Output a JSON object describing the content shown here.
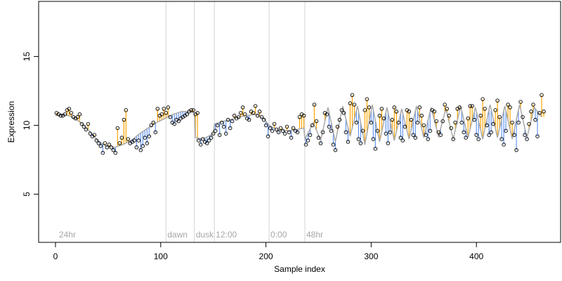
{
  "chart_data": {
    "type": "scatter",
    "xlabel": "Sample index",
    "ylabel": "Expression",
    "xlim": [
      -16,
      480
    ],
    "ylim": [
      1.5,
      19
    ],
    "x_ticks": [
      0,
      100,
      200,
      300,
      400
    ],
    "y_ticks": [
      5,
      10,
      15
    ],
    "grid": false,
    "colors": {
      "points_stroke": "#000000",
      "segment_above": "#ffa500",
      "segment_below": "#6495ed",
      "fitted_line": "#a9a9a9",
      "vertical_lines": "#d3d3d3",
      "annotation_text": "#a6a6a6"
    },
    "vertical_markers": [
      {
        "x": 105,
        "label": "dawn"
      },
      {
        "x": 132,
        "label": "dusk"
      },
      {
        "x": 151,
        "label": "12:00"
      },
      {
        "x": 203,
        "label": "0:00"
      },
      {
        "x": 237,
        "label": "48hr"
      }
    ],
    "annotations": [
      {
        "x": 2,
        "label": "24hr"
      }
    ],
    "fitted_line": [
      [
        0,
        10.7
      ],
      [
        8,
        10.8
      ],
      [
        16,
        10.6
      ],
      [
        24,
        10.2
      ],
      [
        32,
        9.6
      ],
      [
        40,
        8.9
      ],
      [
        48,
        8.5
      ],
      [
        56,
        8.4
      ],
      [
        64,
        8.6
      ],
      [
        72,
        8.9
      ],
      [
        80,
        9.4
      ],
      [
        88,
        9.8
      ],
      [
        96,
        10.2
      ],
      [
        104,
        10.5
      ],
      [
        112,
        10.8
      ],
      [
        120,
        11.0
      ],
      [
        128,
        11.0
      ],
      [
        132,
        10.9
      ],
      [
        133,
        9.1
      ],
      [
        140,
        9.0
      ],
      [
        150,
        9.4
      ],
      [
        151,
        10.1
      ],
      [
        160,
        10.3
      ],
      [
        170,
        10.5
      ],
      [
        180,
        10.7
      ],
      [
        190,
        10.8
      ],
      [
        198,
        10.5
      ],
      [
        203,
        10.0
      ],
      [
        210,
        9.7
      ],
      [
        220,
        9.6
      ],
      [
        230,
        9.7
      ],
      [
        236,
        9.8
      ],
      [
        237,
        9.0
      ],
      [
        245,
        10.2
      ],
      [
        252,
        8.9
      ],
      [
        259,
        11.3
      ],
      [
        266,
        8.8
      ],
      [
        273,
        11.4
      ],
      [
        280,
        9.2
      ],
      [
        287,
        11.4
      ],
      [
        294,
        8.6
      ],
      [
        301,
        11.5
      ],
      [
        308,
        8.8
      ],
      [
        315,
        11.3
      ],
      [
        322,
        8.9
      ],
      [
        329,
        11.2
      ],
      [
        336,
        9.0
      ],
      [
        343,
        11.4
      ],
      [
        350,
        9.1
      ],
      [
        357,
        11.3
      ],
      [
        364,
        9.2
      ],
      [
        371,
        11.2
      ],
      [
        378,
        9.0
      ],
      [
        385,
        11.4
      ],
      [
        392,
        9.1
      ],
      [
        399,
        11.3
      ],
      [
        406,
        9.0
      ],
      [
        413,
        11.5
      ],
      [
        420,
        9.1
      ],
      [
        427,
        11.4
      ],
      [
        434,
        9.0
      ],
      [
        441,
        11.5
      ],
      [
        448,
        9.1
      ],
      [
        455,
        11.3
      ],
      [
        462,
        10.6
      ]
    ],
    "points": [
      [
        1,
        10.9
      ],
      [
        3,
        10.8
      ],
      [
        5,
        10.7
      ],
      [
        7,
        10.7
      ],
      [
        9,
        10.8
      ],
      [
        11,
        11.1
      ],
      [
        13,
        11.2
      ],
      [
        15,
        10.9
      ],
      [
        17,
        10.6
      ],
      [
        19,
        10.5
      ],
      [
        21,
        10.6
      ],
      [
        23,
        10.8
      ],
      [
        25,
        10.1
      ],
      [
        27,
        9.9
      ],
      [
        29,
        9.7
      ],
      [
        31,
        10.1
      ],
      [
        33,
        9.4
      ],
      [
        35,
        9.2
      ],
      [
        37,
        9.3
      ],
      [
        39,
        8.9
      ],
      [
        41,
        8.7
      ],
      [
        43,
        8.5
      ],
      [
        45,
        8.0
      ],
      [
        47,
        8.7
      ],
      [
        49,
        8.4
      ],
      [
        51,
        8.6
      ],
      [
        53,
        8.4
      ],
      [
        55,
        8.2
      ],
      [
        57,
        8.0
      ],
      [
        59,
        9.8
      ],
      [
        61,
        8.7
      ],
      [
        63,
        9.1
      ],
      [
        65,
        10.4
      ],
      [
        67,
        11.1
      ],
      [
        69,
        9.0
      ],
      [
        71,
        8.7
      ],
      [
        73,
        8.8
      ],
      [
        75,
        8.9
      ],
      [
        77,
        8.4
      ],
      [
        79,
        8.9
      ],
      [
        81,
        8.2
      ],
      [
        83,
        8.5
      ],
      [
        85,
        9.1
      ],
      [
        87,
        8.7
      ],
      [
        89,
        9.2
      ],
      [
        91,
        10.0
      ],
      [
        93,
        10.2
      ],
      [
        95,
        9.5
      ],
      [
        97,
        11.2
      ],
      [
        99,
        10.7
      ],
      [
        101,
        10.8
      ],
      [
        103,
        11.2
      ],
      [
        105,
        10.9
      ],
      [
        107,
        11.3
      ],
      [
        109,
        10.6
      ],
      [
        111,
        10.2
      ],
      [
        113,
        10.1
      ],
      [
        115,
        10.4
      ],
      [
        117,
        10.3
      ],
      [
        119,
        10.5
      ],
      [
        121,
        10.6
      ],
      [
        123,
        10.7
      ],
      [
        125,
        10.8
      ],
      [
        127,
        11.0
      ],
      [
        129,
        11.1
      ],
      [
        131,
        11.1
      ],
      [
        133,
        10.8
      ],
      [
        135,
        10.9
      ],
      [
        136,
        8.9
      ],
      [
        138,
        8.6
      ],
      [
        140,
        9.0
      ],
      [
        142,
        8.8
      ],
      [
        144,
        8.7
      ],
      [
        146,
        8.9
      ],
      [
        148,
        9.1
      ],
      [
        150,
        9.4
      ],
      [
        152,
        9.6
      ],
      [
        154,
        10.0
      ],
      [
        156,
        9.3
      ],
      [
        158,
        10.2
      ],
      [
        160,
        9.9
      ],
      [
        162,
        9.4
      ],
      [
        164,
        10.4
      ],
      [
        166,
        9.8
      ],
      [
        168,
        10.3
      ],
      [
        170,
        10.7
      ],
      [
        172,
        10.5
      ],
      [
        174,
        10.6
      ],
      [
        176,
        10.9
      ],
      [
        178,
        11.3
      ],
      [
        180,
        10.8
      ],
      [
        182,
        10.5
      ],
      [
        184,
        10.4
      ],
      [
        186,
        11.0
      ],
      [
        188,
        10.9
      ],
      [
        190,
        11.4
      ],
      [
        192,
        10.7
      ],
      [
        194,
        11.0
      ],
      [
        196,
        10.6
      ],
      [
        198,
        10.4
      ],
      [
        200,
        10.0
      ],
      [
        202,
        9.2
      ],
      [
        204,
        9.8
      ],
      [
        206,
        9.6
      ],
      [
        208,
        10.1
      ],
      [
        210,
        9.7
      ],
      [
        212,
        9.5
      ],
      [
        214,
        9.8
      ],
      [
        216,
        9.6
      ],
      [
        218,
        9.4
      ],
      [
        220,
        9.9
      ],
      [
        222,
        9.5
      ],
      [
        224,
        9.1
      ],
      [
        226,
        9.8
      ],
      [
        228,
        9.6
      ],
      [
        230,
        9.5
      ],
      [
        232,
        10.6
      ],
      [
        234,
        10.8
      ],
      [
        236,
        10.7
      ],
      [
        238,
        8.6
      ],
      [
        240,
        8.9
      ],
      [
        242,
        9.3
      ],
      [
        244,
        10.0
      ],
      [
        246,
        11.5
      ],
      [
        248,
        10.3
      ],
      [
        250,
        9.1
      ],
      [
        252,
        8.7
      ],
      [
        254,
        9.5
      ],
      [
        256,
        10.9
      ],
      [
        258,
        10.8
      ],
      [
        260,
        9.9
      ],
      [
        262,
        9.6
      ],
      [
        264,
        8.6
      ],
      [
        266,
        8.2
      ],
      [
        268,
        9.9
      ],
      [
        270,
        10.4
      ],
      [
        272,
        11.1
      ],
      [
        274,
        10.9
      ],
      [
        276,
        9.5
      ],
      [
        278,
        8.8
      ],
      [
        280,
        11.6
      ],
      [
        282,
        12.2
      ],
      [
        284,
        11.5
      ],
      [
        286,
        10.2
      ],
      [
        288,
        9.0
      ],
      [
        290,
        8.7
      ],
      [
        292,
        9.6
      ],
      [
        294,
        11.1
      ],
      [
        296,
        11.9
      ],
      [
        298,
        11.3
      ],
      [
        300,
        10.2
      ],
      [
        302,
        9.0
      ],
      [
        304,
        8.3
      ],
      [
        306,
        9.6
      ],
      [
        308,
        10.7
      ],
      [
        310,
        11.2
      ],
      [
        312,
        10.5
      ],
      [
        314,
        9.4
      ],
      [
        316,
        8.7
      ],
      [
        318,
        9.5
      ],
      [
        320,
        10.4
      ],
      [
        322,
        11.3
      ],
      [
        324,
        11.0
      ],
      [
        326,
        10.2
      ],
      [
        328,
        9.1
      ],
      [
        330,
        8.9
      ],
      [
        332,
        9.9
      ],
      [
        334,
        11.1
      ],
      [
        336,
        11.0
      ],
      [
        338,
        10.4
      ],
      [
        340,
        9.3
      ],
      [
        342,
        9.1
      ],
      [
        344,
        10.2
      ],
      [
        346,
        11.3
      ],
      [
        348,
        10.7
      ],
      [
        350,
        10.0
      ],
      [
        352,
        9.3
      ],
      [
        354,
        9.0
      ],
      [
        356,
        9.6
      ],
      [
        358,
        11.1
      ],
      [
        360,
        11.0
      ],
      [
        362,
        10.3
      ],
      [
        364,
        9.5
      ],
      [
        366,
        9.3
      ],
      [
        368,
        10.3
      ],
      [
        370,
        11.5
      ],
      [
        372,
        11.2
      ],
      [
        374,
        10.7
      ],
      [
        376,
        9.8
      ],
      [
        378,
        9.0
      ],
      [
        380,
        10.2
      ],
      [
        382,
        11.2
      ],
      [
        384,
        11.3
      ],
      [
        386,
        10.2
      ],
      [
        388,
        9.5
      ],
      [
        390,
        9.1
      ],
      [
        392,
        10.5
      ],
      [
        394,
        11.4
      ],
      [
        396,
        11.4
      ],
      [
        398,
        10.4
      ],
      [
        400,
        9.3
      ],
      [
        402,
        9.0
      ],
      [
        404,
        10.7
      ],
      [
        406,
        11.9
      ],
      [
        408,
        11.2
      ],
      [
        410,
        10.0
      ],
      [
        412,
        9.3
      ],
      [
        414,
        9.5
      ],
      [
        416,
        10.1
      ],
      [
        418,
        11.1
      ],
      [
        420,
        11.8
      ],
      [
        422,
        10.6
      ],
      [
        424,
        9.0
      ],
      [
        426,
        8.6
      ],
      [
        428,
        9.6
      ],
      [
        430,
        11.5
      ],
      [
        432,
        11.3
      ],
      [
        434,
        10.2
      ],
      [
        436,
        9.3
      ],
      [
        438,
        8.2
      ],
      [
        440,
        10.2
      ],
      [
        442,
        11.7
      ],
      [
        444,
        10.6
      ],
      [
        446,
        9.3
      ],
      [
        448,
        9.0
      ],
      [
        450,
        10.1
      ],
      [
        452,
        11.0
      ],
      [
        454,
        11.5
      ],
      [
        456,
        10.4
      ],
      [
        458,
        9.2
      ],
      [
        460,
        10.9
      ],
      [
        462,
        12.2
      ],
      [
        464,
        11.0
      ]
    ]
  }
}
